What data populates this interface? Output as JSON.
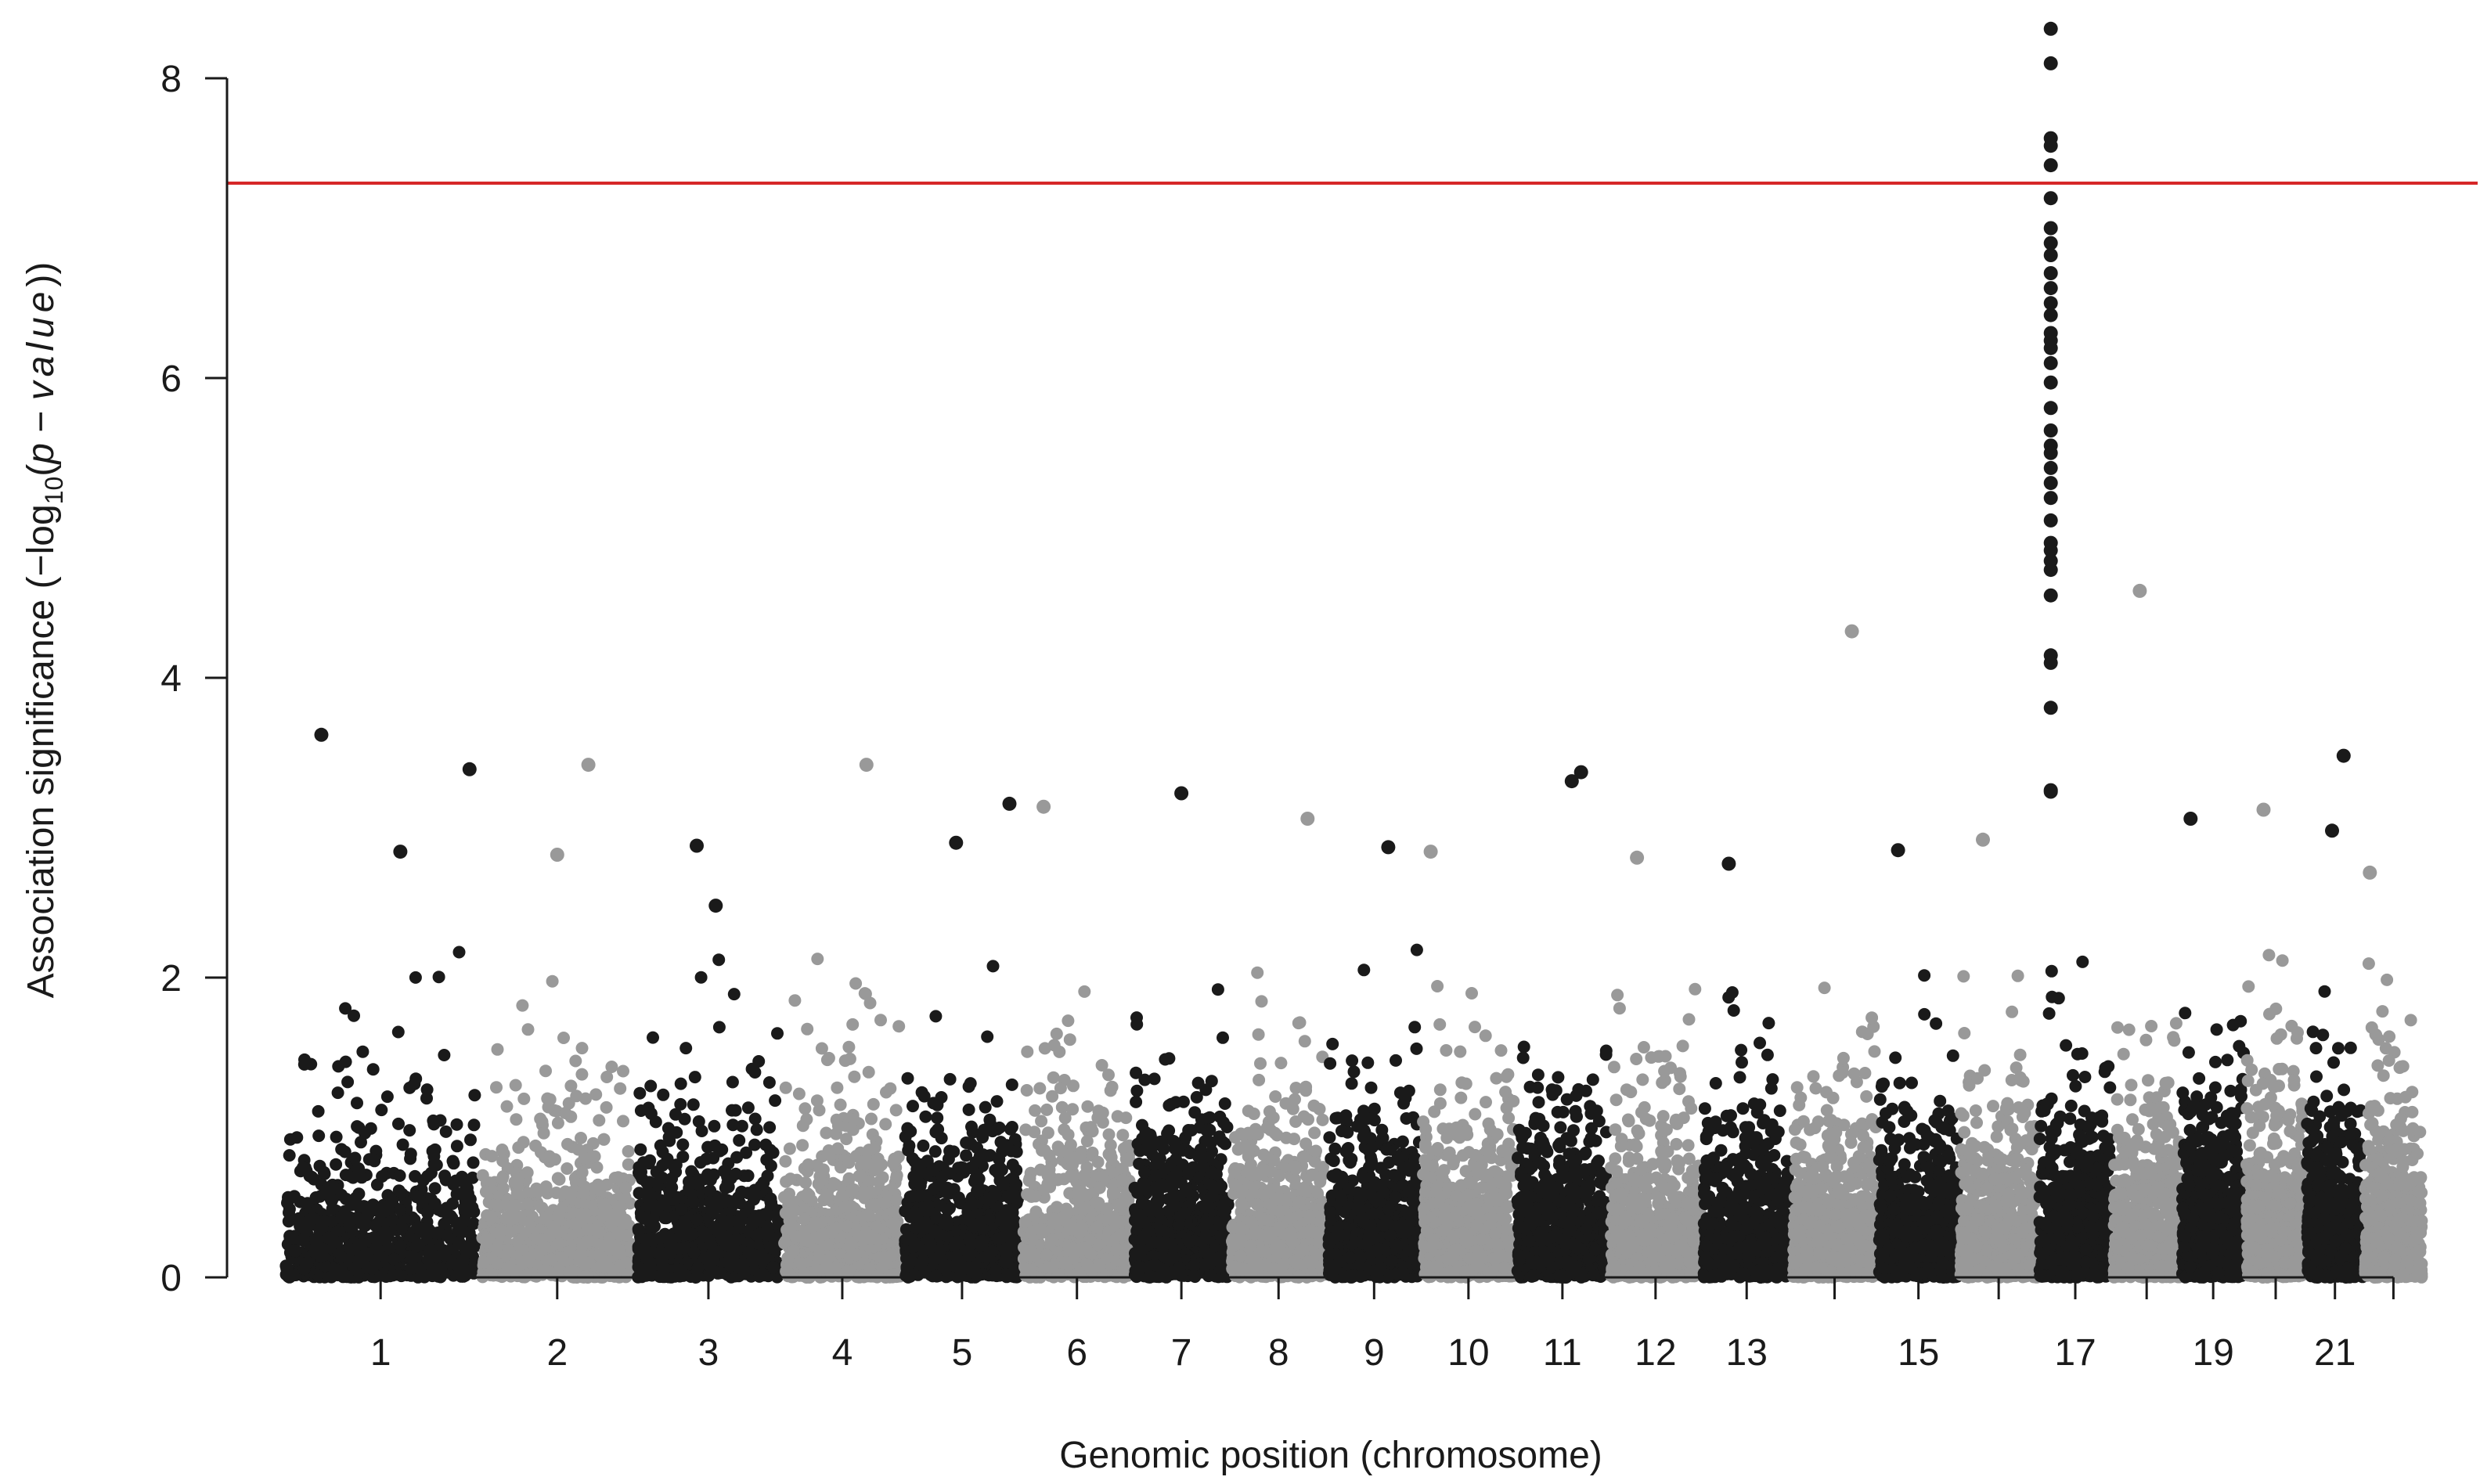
{
  "chart_data": {
    "type": "scatter",
    "subtype": "manhattan",
    "title": "",
    "xlabel": "Genomic position (chromosome)",
    "ylabel_prefix": "Association significance (",
    "ylabel_log": "−log",
    "ylabel_sub": "10",
    "ylabel_paren_open": "(",
    "ylabel_p": "p",
    "ylabel_minus": " − ",
    "ylabel_value": "value",
    "ylabel_suffix": "))",
    "ylim": [
      0,
      8.4
    ],
    "y_ticks": [
      0,
      2,
      4,
      6,
      8
    ],
    "grid": false,
    "legend": "none",
    "colors": {
      "odd_chromosome": "#1a1a1a",
      "even_chromosome": "#999999",
      "threshold": "#d62728"
    },
    "threshold_line": {
      "y": 7.3
    },
    "chromosomes": [
      {
        "chr": 1,
        "label": "1",
        "start": 0.0,
        "end": 2.45
      },
      {
        "chr": 2,
        "label": "2",
        "start": 2.45,
        "end": 4.38
      },
      {
        "chr": 3,
        "label": "3",
        "start": 4.38,
        "end": 6.2
      },
      {
        "chr": 4,
        "label": "4",
        "start": 6.2,
        "end": 7.7
      },
      {
        "chr": 5,
        "label": "5",
        "start": 7.7,
        "end": 9.17
      },
      {
        "chr": 6,
        "label": "6",
        "start": 9.17,
        "end": 10.55
      },
      {
        "chr": 7,
        "label": "7",
        "start": 10.55,
        "end": 11.76
      },
      {
        "chr": 8,
        "label": "8",
        "start": 11.76,
        "end": 12.96
      },
      {
        "chr": 9,
        "label": "9",
        "start": 12.96,
        "end": 14.13
      },
      {
        "chr": 10,
        "label": "10",
        "start": 14.13,
        "end": 15.3
      },
      {
        "chr": 11,
        "label": "11",
        "start": 15.3,
        "end": 16.46
      },
      {
        "chr": 12,
        "label": "12",
        "start": 16.46,
        "end": 17.61
      },
      {
        "chr": 13,
        "label": "13",
        "start": 17.61,
        "end": 18.72
      },
      {
        "chr": 14,
        "label": "",
        "start": 18.72,
        "end": 19.79
      },
      {
        "chr": 15,
        "label": "15",
        "start": 19.79,
        "end": 20.8
      },
      {
        "chr": 16,
        "label": "",
        "start": 20.8,
        "end": 21.78
      },
      {
        "chr": 17,
        "label": "17",
        "start": 21.78,
        "end": 22.7
      },
      {
        "chr": 18,
        "label": "",
        "start": 22.7,
        "end": 23.55
      },
      {
        "chr": 19,
        "label": "19",
        "start": 23.55,
        "end": 24.35
      },
      {
        "chr": 20,
        "label": "",
        "start": 24.35,
        "end": 25.1
      },
      {
        "chr": 21,
        "label": "21",
        "start": 25.1,
        "end": 25.82
      },
      {
        "chr": 22,
        "label": "",
        "start": 25.82,
        "end": 26.55
      }
    ],
    "background_points_per_chromosome": 700,
    "notable_points": [
      {
        "chr": 1,
        "pos": 0.2,
        "y": 3.62
      },
      {
        "chr": 1,
        "pos": 0.95,
        "y": 3.39
      },
      {
        "chr": 1,
        "pos": 2.1,
        "y": 2.88
      },
      {
        "chr": 1,
        "pos": 0.6,
        "y": 2.84
      },
      {
        "chr": 2,
        "pos": 0.7,
        "y": 3.42
      },
      {
        "chr": 2,
        "pos": 0.5,
        "y": 2.82
      },
      {
        "chr": 3,
        "pos": 0.55,
        "y": 2.48
      },
      {
        "chr": 4,
        "pos": 0.7,
        "y": 3.42
      },
      {
        "chr": 5,
        "pos": 0.9,
        "y": 3.16
      },
      {
        "chr": 5,
        "pos": 0.45,
        "y": 2.9
      },
      {
        "chr": 6,
        "pos": 0.2,
        "y": 3.14
      },
      {
        "chr": 7,
        "pos": 0.5,
        "y": 3.23
      },
      {
        "chr": 8,
        "pos": 0.8,
        "y": 3.06
      },
      {
        "chr": 9,
        "pos": 0.65,
        "y": 2.87
      },
      {
        "chr": 10,
        "pos": 0.1,
        "y": 2.84
      },
      {
        "chr": 11,
        "pos": 0.7,
        "y": 3.37
      },
      {
        "chr": 11,
        "pos": 0.6,
        "y": 3.31
      },
      {
        "chr": 12,
        "pos": 0.3,
        "y": 2.8
      },
      {
        "chr": 13,
        "pos": 0.3,
        "y": 2.76
      },
      {
        "chr": 14,
        "pos": 0.7,
        "y": 4.31
      },
      {
        "chr": 15,
        "pos": 0.25,
        "y": 2.85
      },
      {
        "chr": 16,
        "pos": 0.3,
        "y": 2.92
      },
      {
        "chr": 18,
        "pos": 0.4,
        "y": 4.58
      },
      {
        "chr": 19,
        "pos": 0.15,
        "y": 3.06
      },
      {
        "chr": 20,
        "pos": 0.3,
        "y": 3.12
      },
      {
        "chr": 21,
        "pos": 0.65,
        "y": 3.48
      },
      {
        "chr": 21,
        "pos": 0.45,
        "y": 2.98
      },
      {
        "chr": 22,
        "pos": 0.1,
        "y": 2.7
      }
    ],
    "peak": {
      "chr": 17,
      "pos": 0.17,
      "values": [
        8.33,
        8.1,
        7.6,
        7.55,
        7.42,
        7.2,
        7.0,
        6.9,
        6.82,
        6.7,
        6.6,
        6.5,
        6.42,
        6.3,
        6.25,
        6.2,
        6.1,
        5.97,
        5.8,
        5.65,
        5.55,
        5.5,
        5.4,
        5.3,
        5.2,
        5.05,
        4.9,
        4.85,
        4.78,
        4.72,
        4.55,
        4.15,
        4.1,
        3.8,
        3.25,
        3.24
      ]
    }
  }
}
